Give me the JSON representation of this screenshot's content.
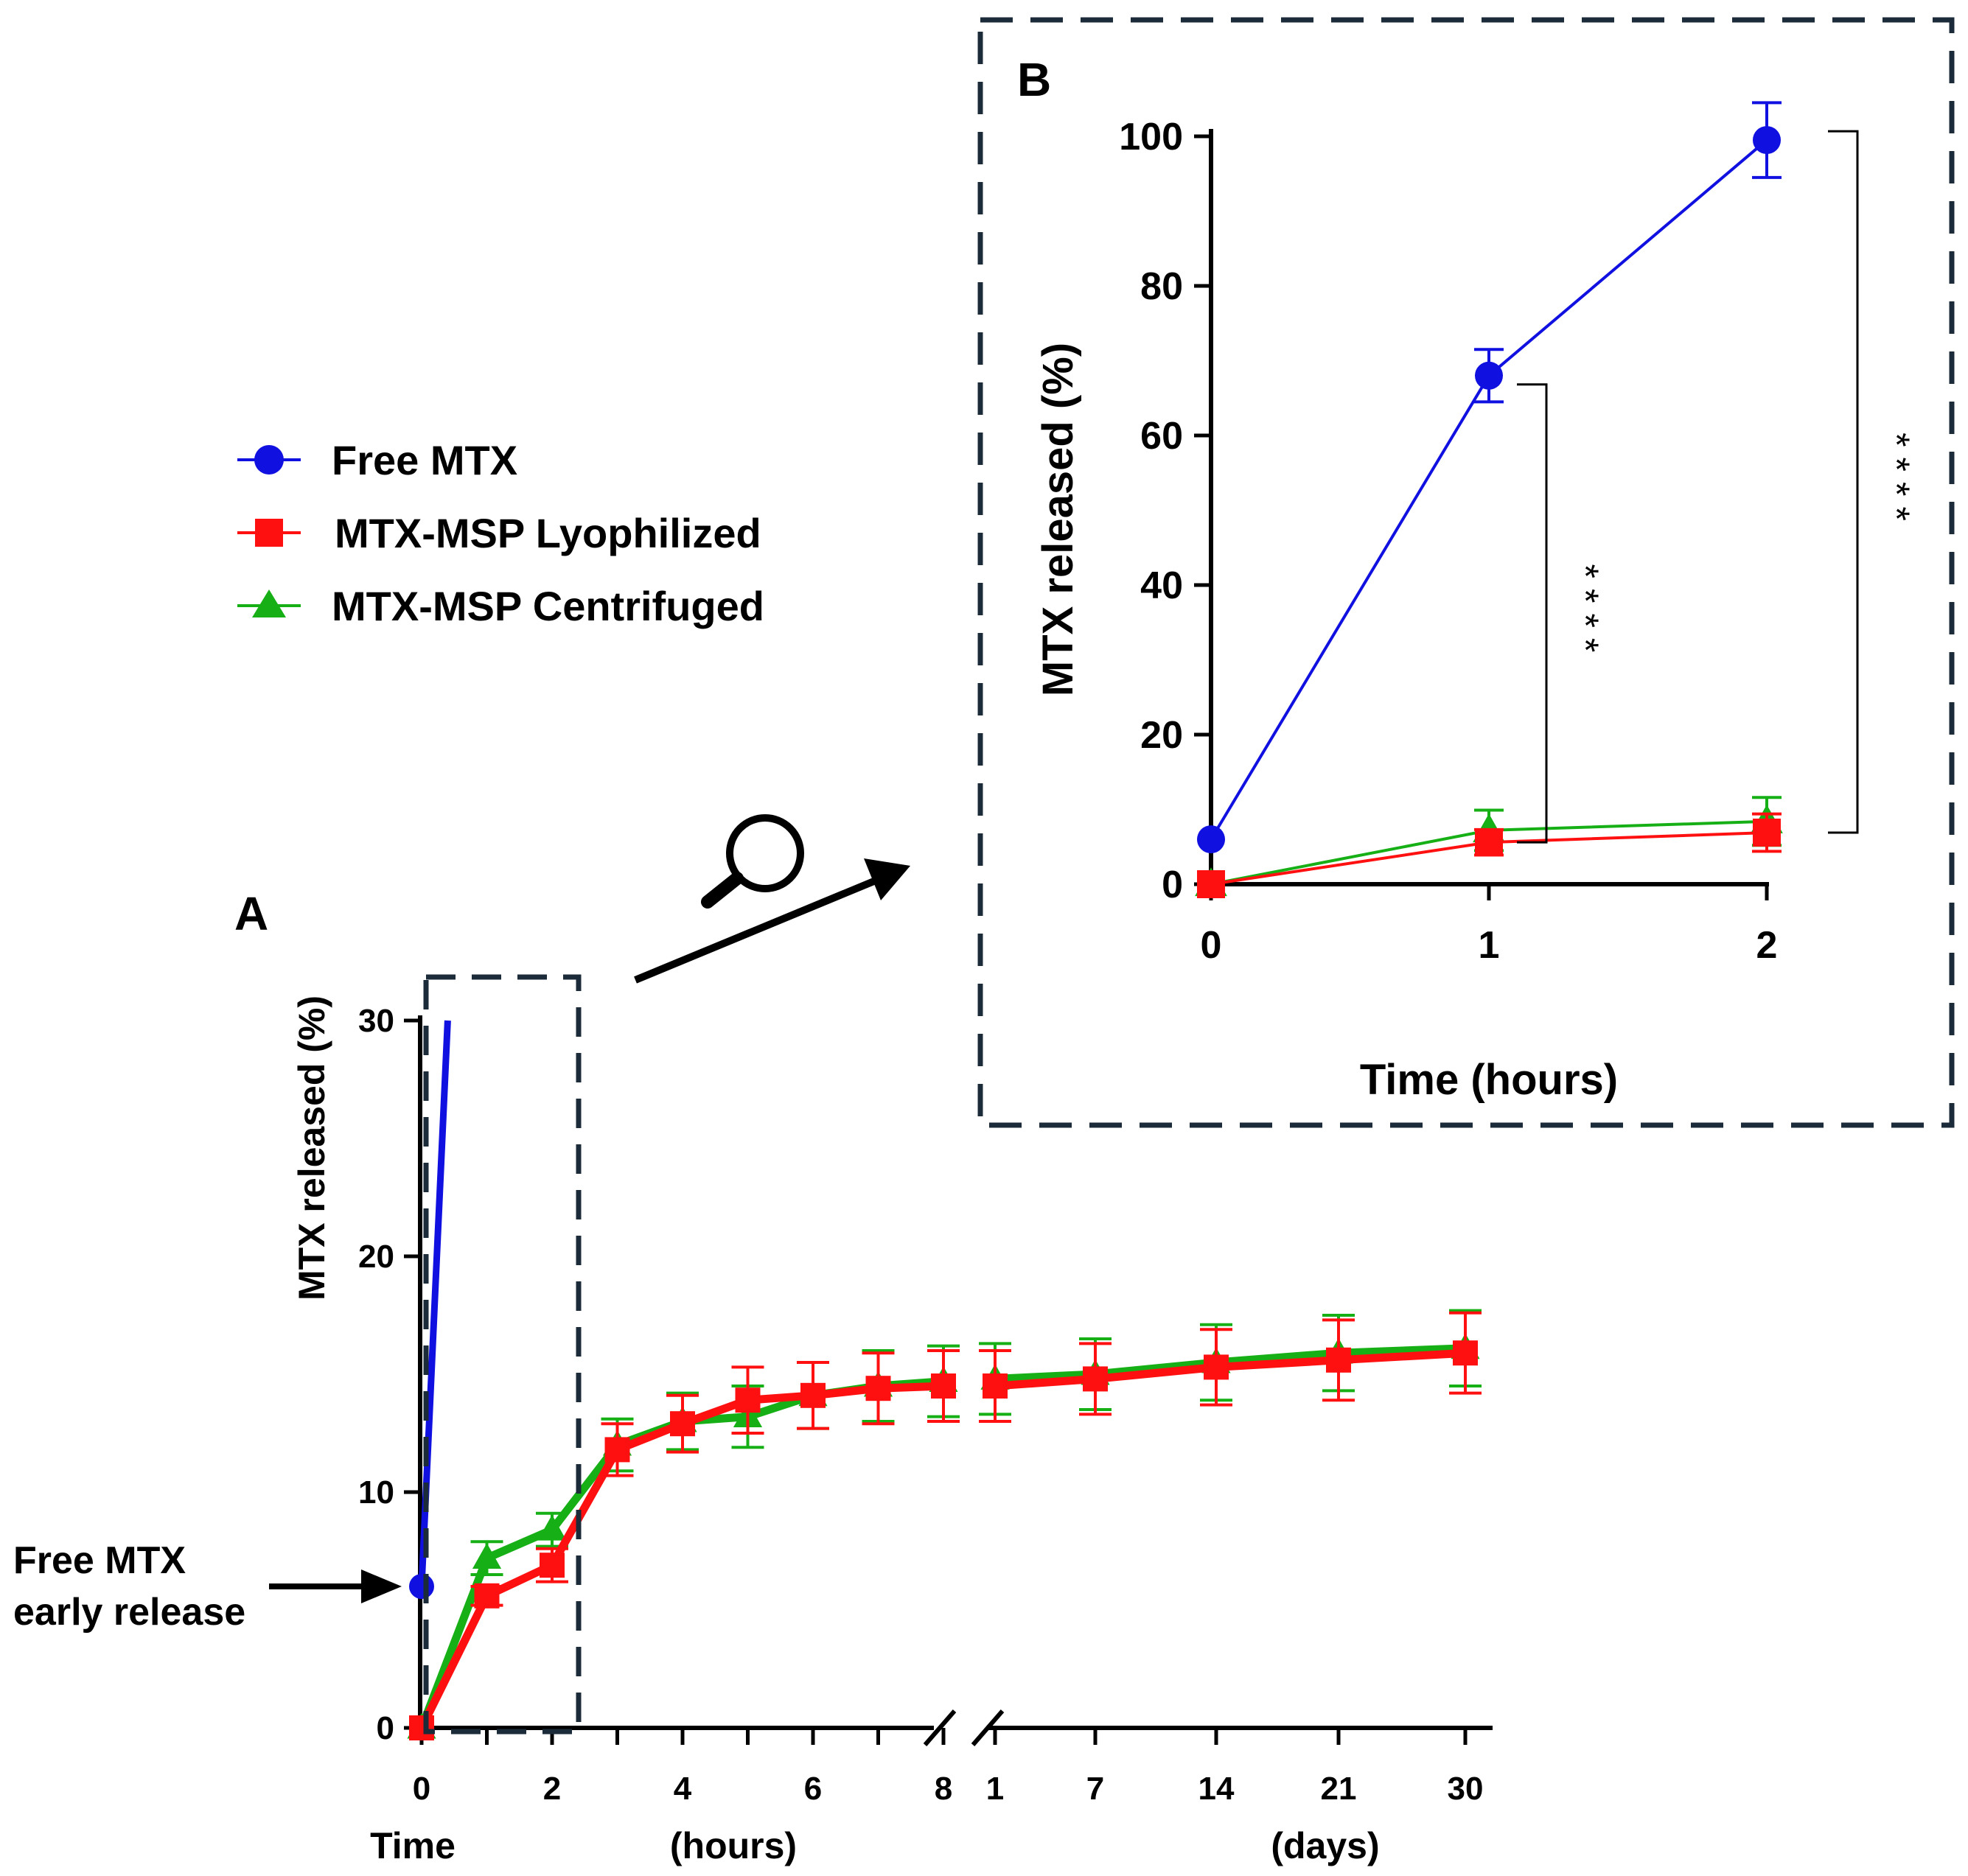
{
  "colors": {
    "free_mtx": "#1010e0",
    "lyophilized": "#ff1010",
    "centrifuged": "#16b016",
    "frame": "#1c2b3a"
  },
  "legend": {
    "items": [
      {
        "label": "Free MTX",
        "marker": "circle",
        "color": "#1010e0"
      },
      {
        "label": "MTX-MSP Lyophilized",
        "marker": "square",
        "color": "#ff1010"
      },
      {
        "label": "MTX-MSP Centrifuged",
        "marker": "triangle",
        "color": "#16b016"
      }
    ]
  },
  "annotation": {
    "line1": "Free MTX",
    "line2": "early release"
  },
  "zoom_icon": "magnifier-icon",
  "chart_data": [
    {
      "panel": "A",
      "type": "line",
      "ylabel": "MTX released (%)",
      "xlabel_left": "Time",
      "xlabel_hours": "(hours)",
      "xlabel_days": "(days)",
      "ylim": [
        0,
        30
      ],
      "yticks": [
        "0",
        "10",
        "20",
        "30"
      ],
      "hours_ticks": [
        "0",
        "2",
        "4",
        "6",
        "8"
      ],
      "days_ticks": [
        "1",
        "7",
        "14",
        "21",
        "30"
      ],
      "axis_break": "between 8 hours and 1 day",
      "series": [
        {
          "name": "Free MTX",
          "segment": "hours",
          "x": [
            0,
            0.4
          ],
          "y": [
            6,
            30
          ],
          "err": [
            0,
            0
          ]
        },
        {
          "name": "MTX-MSP Centrifuged",
          "segment": "hours",
          "x": [
            0,
            1,
            2,
            3,
            4,
            5,
            6,
            7,
            8
          ],
          "y": [
            0,
            7.2,
            8.4,
            12.0,
            13.0,
            13.2,
            14.1,
            14.5,
            14.7
          ],
          "err": [
            0,
            0.7,
            0.7,
            1.1,
            1.2,
            1.3,
            1.4,
            1.5,
            1.5
          ]
        },
        {
          "name": "MTX-MSP Centrifuged",
          "segment": "days",
          "x": [
            1,
            7,
            14,
            21,
            30
          ],
          "y": [
            14.8,
            15.0,
            15.5,
            15.9,
            16.1
          ],
          "err": [
            1.5,
            1.5,
            1.6,
            1.6,
            1.6
          ]
        },
        {
          "name": "MTX-MSP Lyophilized",
          "segment": "hours",
          "x": [
            0,
            1,
            2,
            3,
            4,
            5,
            6,
            7,
            8
          ],
          "y": [
            0,
            5.6,
            6.9,
            11.8,
            12.9,
            13.9,
            14.1,
            14.4,
            14.5
          ],
          "err": [
            0,
            0.4,
            0.7,
            1.1,
            1.2,
            1.4,
            1.4,
            1.5,
            1.5
          ]
        },
        {
          "name": "MTX-MSP Lyophilized",
          "segment": "days",
          "x": [
            1,
            7,
            14,
            21,
            30
          ],
          "y": [
            14.5,
            14.8,
            15.3,
            15.6,
            15.9
          ],
          "err": [
            1.5,
            1.5,
            1.6,
            1.7,
            1.7
          ]
        }
      ]
    },
    {
      "panel": "B",
      "type": "line",
      "ylabel": "MTX released (%)",
      "xlabel": "Time (hours)",
      "ylim": [
        0,
        100
      ],
      "yticks": [
        "0",
        "20",
        "40",
        "60",
        "80",
        "100"
      ],
      "xticks": [
        "0",
        "1",
        "2"
      ],
      "series": [
        {
          "name": "Free MTX",
          "x": [
            0,
            1,
            2
          ],
          "y": [
            6,
            68,
            99.5
          ],
          "err": [
            0,
            3.5,
            5
          ]
        },
        {
          "name": "MTX-MSP Centrifuged",
          "x": [
            0,
            1,
            2
          ],
          "y": [
            0,
            7.2,
            8.4
          ],
          "err": [
            0,
            2.7,
            3.2
          ]
        },
        {
          "name": "MTX-MSP Lyophilized",
          "x": [
            0,
            1,
            2
          ],
          "y": [
            0,
            5.6,
            6.9
          ],
          "err": [
            0,
            1.7,
            2.5
          ]
        }
      ],
      "significance": [
        {
          "at_x": 1,
          "label": "****"
        },
        {
          "at_x": 2,
          "label": "****"
        }
      ]
    }
  ]
}
